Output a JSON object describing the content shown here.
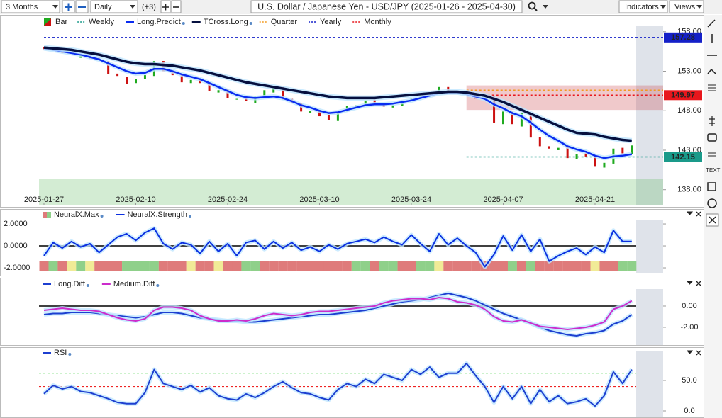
{
  "toolbar": {
    "range": "3 Months",
    "interval": "Daily",
    "extra": "(+3)",
    "title": "U.S. Dollar / Japanese Yen - USD/JPY (2025-01-26 - 2025-04-30)",
    "indicators": "Indicators",
    "views": "Views"
  },
  "chart_data": [
    {
      "type": "ohlc-bar",
      "bar_name": "Bar",
      "up_color": "#1faa1f",
      "down_color": "#cc1111",
      "categories": [
        "2025-01-27",
        null,
        null,
        null,
        null,
        null,
        null,
        null,
        null,
        null,
        "2025-02-10",
        null,
        null,
        null,
        null,
        null,
        null,
        null,
        null,
        null,
        "2025-02-24",
        null,
        null,
        null,
        null,
        null,
        null,
        null,
        null,
        null,
        "2025-03-10",
        null,
        null,
        null,
        null,
        null,
        null,
        null,
        null,
        null,
        "2025-03-24",
        null,
        null,
        null,
        null,
        null,
        null,
        null,
        null,
        null,
        "2025-04-07",
        null,
        null,
        null,
        null,
        null,
        null,
        null,
        null,
        null,
        "2025-04-21",
        null,
        null,
        null,
        null
      ],
      "open": [
        156.1,
        155.8,
        155.7,
        155.4,
        154.7,
        155.0,
        154.7,
        154.3,
        152.7,
        152.3,
        151.5,
        152.0,
        152.4,
        154.3,
        153.1,
        152.6,
        151.5,
        152.0,
        151.4,
        150.3,
        150.7,
        149.4,
        149.6,
        149.0,
        149.6,
        150.3,
        151.0,
        149.5,
        149.0,
        147.7,
        148.1,
        147.4,
        146.7,
        147.9,
        148.5,
        148.6,
        149.4,
        148.8,
        148.4,
        148.6,
        149.3,
        149.6,
        149.8,
        150.3,
        151.0,
        150.1,
        150.5,
        150.0,
        149.4,
        149.9,
        146.3,
        147.9,
        146.0,
        147.6,
        144.7,
        143.5,
        143.0,
        143.4,
        141.9,
        142.6,
        142.2,
        140.8,
        141.3,
        143.3,
        142.5
      ],
      "close": [
        155.8,
        155.6,
        155.3,
        155.2,
        155.0,
        154.6,
        154.4,
        152.6,
        152.4,
        151.4,
        152.0,
        152.5,
        154.3,
        153.0,
        152.5,
        151.6,
        151.9,
        151.5,
        150.5,
        150.6,
        149.6,
        149.5,
        149.2,
        149.8,
        150.6,
        151.0,
        149.4,
        149.0,
        147.9,
        148.0,
        147.3,
        146.8,
        147.8,
        148.6,
        148.7,
        149.3,
        148.8,
        148.5,
        148.7,
        149.3,
        149.6,
        149.9,
        150.3,
        151.0,
        150.2,
        150.4,
        150.0,
        149.5,
        149.8,
        146.5,
        147.9,
        146.3,
        147.7,
        144.6,
        143.5,
        143.2,
        143.3,
        142.0,
        142.5,
        142.2,
        140.9,
        141.4,
        143.2,
        142.6,
        143.6
      ],
      "series": [
        {
          "name": "Long.Predict",
          "color": "#0a2cf0",
          "values": [
            155.9,
            155.7,
            155.5,
            155.3,
            155.1,
            154.8,
            154.5,
            154.0,
            153.5,
            153.0,
            152.7,
            152.8,
            153.3,
            153.3,
            153.0,
            152.6,
            152.3,
            152.0,
            151.5,
            151.0,
            150.5,
            150.0,
            149.7,
            149.6,
            149.7,
            149.8,
            149.6,
            149.2,
            148.7,
            148.4,
            148.0,
            147.7,
            147.8,
            148.1,
            148.4,
            148.7,
            148.8,
            148.8,
            148.9,
            149.1,
            149.3,
            149.6,
            149.9,
            150.2,
            150.3,
            150.3,
            150.1,
            149.8,
            149.5,
            148.8,
            148.3,
            147.7,
            147.3,
            146.5,
            145.6,
            144.8,
            144.2,
            143.5,
            143.1,
            142.8,
            142.3,
            142.0,
            142.2,
            142.3,
            142.5
          ]
        },
        {
          "name": "TCross.Long",
          "color": "#06103f",
          "values": [
            156.0,
            155.9,
            155.8,
            155.7,
            155.5,
            155.3,
            155.1,
            154.8,
            154.5,
            154.2,
            154.0,
            153.9,
            153.9,
            153.8,
            153.7,
            153.5,
            153.3,
            153.1,
            152.8,
            152.5,
            152.2,
            151.9,
            151.6,
            151.4,
            151.2,
            151.0,
            150.8,
            150.6,
            150.4,
            150.2,
            150.0,
            149.8,
            149.7,
            149.6,
            149.6,
            149.6,
            149.6,
            149.7,
            149.8,
            149.9,
            150.0,
            150.1,
            150.2,
            150.3,
            150.4,
            150.4,
            150.3,
            150.1,
            149.9,
            149.5,
            149.1,
            148.6,
            148.1,
            147.6,
            147.1,
            146.6,
            146.1,
            145.6,
            145.2,
            145.1,
            145.0,
            144.7,
            144.5,
            144.3,
            144.2
          ]
        }
      ],
      "levels": [
        {
          "name": "Weekly",
          "color": "#1a9a8a",
          "value": 142.15,
          "boxed": true
        },
        {
          "name": "Quarter",
          "color": "#f39a1e",
          "value": 150.6,
          "boxed": false
        },
        {
          "name": "Yearly",
          "color": "#1420c8",
          "value": 157.28,
          "boxed": true
        },
        {
          "name": "Monthly",
          "color": "#e8161c",
          "value": 149.97,
          "boxed": true
        }
      ],
      "zones": [
        {
          "from": 148.1,
          "to": 151.2,
          "color": "rgba(200,60,70,0.28)"
        },
        {
          "from": 136.0,
          "to": 139.4,
          "color": "rgba(80,180,80,0.25)"
        }
      ],
      "ylim": [
        136.0,
        158.7
      ],
      "yticks": [
        {
          "value": 138,
          "label": "138.00"
        },
        {
          "value": 143,
          "label": "143.00"
        },
        {
          "value": 148,
          "label": "148.00"
        },
        {
          "value": 153,
          "label": "153.00"
        },
        {
          "value": 158,
          "label": "158.00"
        }
      ]
    },
    {
      "type": "line",
      "series": [
        {
          "name": "NeuralX.Max",
          "type": "strip",
          "colors": [
            "#df7b7b",
            "#f1eb97",
            "#8fd08a"
          ],
          "values": [
            -1,
            1,
            -1,
            0,
            1,
            0,
            -1,
            -1,
            -1,
            1,
            1,
            1,
            1,
            -1,
            -1,
            -1,
            0,
            -1,
            -1,
            0,
            -1,
            -1,
            1,
            1,
            -1,
            -1,
            -1,
            -1,
            -1,
            -1,
            -1,
            -1,
            -1,
            -1,
            1,
            1,
            -1,
            1,
            1,
            -1,
            -1,
            1,
            1,
            0,
            -1,
            -1,
            -1,
            -1,
            -1,
            -1,
            -1,
            1,
            -1,
            1,
            -1,
            -1,
            -1,
            -1,
            -1,
            -1,
            0,
            -1,
            -1,
            1,
            1
          ]
        },
        {
          "name": "NeuralX.Strength",
          "color": "#0b2fe0",
          "values": [
            -0.9,
            0.3,
            -0.2,
            0.4,
            -0.1,
            0.2,
            -0.6,
            0.1,
            0.8,
            1.1,
            0.5,
            1.2,
            1.6,
            0.2,
            -0.3,
            0.3,
            0.1,
            -0.7,
            0.4,
            -0.5,
            0.2,
            -0.9,
            0.3,
            0.5,
            -0.3,
            0.4,
            -0.2,
            0.3,
            -0.4,
            -0.1,
            -0.5,
            0.1,
            -0.3,
            0.2,
            0.4,
            0.6,
            0.3,
            0.8,
            0.4,
            0.1,
            1.0,
            0.2,
            -0.5,
            1.1,
            0.1,
            0.7,
            0.0,
            -0.6,
            -1.9,
            -0.8,
            0.9,
            -0.4,
            1.0,
            -0.5,
            0.6,
            -1.4,
            -0.9,
            -0.5,
            -0.2,
            -0.8,
            -0.1,
            -0.6,
            1.4,
            0.4,
            0.4
          ]
        }
      ],
      "ylim": [
        -2.45,
        2.39
      ],
      "yticks": [
        {
          "value": 2,
          "label": "2.0000"
        },
        {
          "value": 0,
          "label": "0.0000"
        },
        {
          "value": -2,
          "label": "-2.0000"
        }
      ],
      "hlines": [
        {
          "value": 0,
          "color": "#000000"
        }
      ]
    },
    {
      "type": "line",
      "series": [
        {
          "name": "Long.Diff",
          "color": "#1d3fd0",
          "values": [
            -0.8,
            -0.7,
            -0.7,
            -0.6,
            -0.6,
            -0.6,
            -0.7,
            -0.8,
            -0.9,
            -1.0,
            -1.1,
            -1.0,
            -0.8,
            -0.6,
            -0.6,
            -0.7,
            -0.9,
            -1.1,
            -1.2,
            -1.3,
            -1.4,
            -1.4,
            -1.5,
            -1.5,
            -1.4,
            -1.3,
            -1.2,
            -1.1,
            -1.0,
            -0.9,
            -0.8,
            -0.8,
            -0.7,
            -0.6,
            -0.5,
            -0.4,
            -0.2,
            0.0,
            0.2,
            0.4,
            0.5,
            0.6,
            0.8,
            1.0,
            1.2,
            1.0,
            0.8,
            0.5,
            0.1,
            -0.3,
            -0.7,
            -1.0,
            -1.3,
            -1.6,
            -2.0,
            -2.3,
            -2.5,
            -2.7,
            -2.8,
            -2.6,
            -2.5,
            -2.3,
            -1.7,
            -1.4,
            -0.8
          ]
        },
        {
          "name": "Medium.Diff",
          "color": "#cc2ccc",
          "values": [
            -0.4,
            -0.3,
            -0.2,
            -0.3,
            -0.4,
            -0.4,
            -0.5,
            -0.8,
            -1.1,
            -1.3,
            -1.4,
            -1.2,
            -0.4,
            -0.1,
            -0.1,
            -0.2,
            -0.4,
            -0.9,
            -1.2,
            -1.4,
            -1.4,
            -1.3,
            -1.4,
            -1.2,
            -0.9,
            -0.7,
            -0.8,
            -0.9,
            -0.8,
            -0.6,
            -0.5,
            -0.5,
            -0.4,
            -0.3,
            -0.2,
            -0.1,
            0.0,
            0.3,
            0.5,
            0.6,
            0.7,
            0.7,
            0.6,
            0.8,
            0.7,
            0.4,
            0.3,
            0.1,
            -0.3,
            -1.0,
            -1.4,
            -1.5,
            -1.3,
            -1.6,
            -1.9,
            -2.0,
            -2.1,
            -2.2,
            -2.1,
            -2.0,
            -1.8,
            -1.5,
            -0.3,
            0.0,
            0.5
          ]
        }
      ],
      "ylim": [
        -3.67,
        1.6
      ],
      "yticks": [
        {
          "value": 0,
          "label": "0.00"
        },
        {
          "value": -2,
          "label": "-2.00"
        }
      ],
      "hlines": [
        {
          "value": 0,
          "color": "#000000"
        }
      ]
    },
    {
      "type": "line",
      "series": [
        {
          "name": "RSI",
          "color": "#1d3fd0",
          "values": [
            28,
            42,
            36,
            40,
            32,
            30,
            25,
            20,
            14,
            12,
            12,
            30,
            68,
            45,
            40,
            35,
            42,
            31,
            38,
            25,
            20,
            18,
            28,
            22,
            30,
            40,
            48,
            38,
            30,
            28,
            22,
            18,
            35,
            45,
            40,
            52,
            45,
            60,
            55,
            50,
            68,
            60,
            72,
            55,
            62,
            62,
            78,
            58,
            40,
            14,
            40,
            20,
            40,
            12,
            35,
            15,
            25,
            12,
            15,
            20,
            8,
            25,
            64,
            45,
            68
          ]
        }
      ],
      "ylim": [
        -9.3,
        98.8
      ],
      "yticks": [
        {
          "value": 0,
          "label": "0.0"
        },
        {
          "value": 50,
          "label": "50.0"
        }
      ],
      "hlines": [
        {
          "value": 62,
          "color": "#33cc33",
          "dashed": true
        },
        {
          "value": 40,
          "color": "#ee2222",
          "dashed": true
        }
      ]
    }
  ]
}
